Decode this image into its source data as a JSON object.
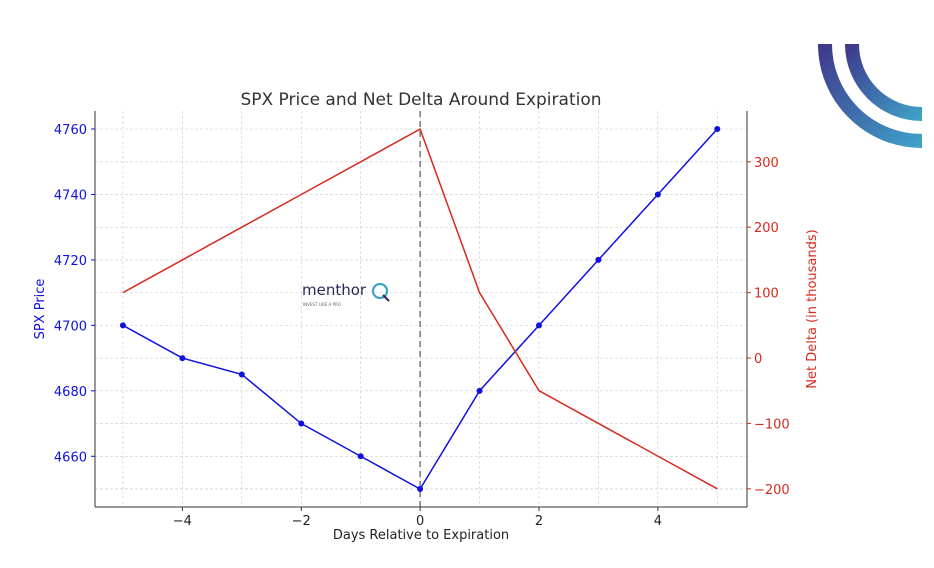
{
  "chart_data": {
    "type": "line",
    "title": "SPX Price and Net Delta Around Expiration",
    "xlabel": "Days Relative to Expiration",
    "ylabel_left": "SPX Price",
    "ylabel_right": "Net Delta (in thousands)",
    "x": [
      -5,
      -4,
      -3,
      -2,
      -1,
      0,
      1,
      2,
      3,
      4,
      5
    ],
    "xlim": [
      -5.47,
      5.5
    ],
    "ylim_left": [
      4644.5,
      4765.5
    ],
    "ylim_right": [
      -227.8,
      377.7
    ],
    "xticks": [
      "−4",
      "−2",
      "0",
      "2",
      "4"
    ],
    "xtick_values": [
      -4,
      -2,
      0,
      2,
      4
    ],
    "yticks_left": [
      "4660",
      "4680",
      "4700",
      "4720",
      "4740",
      "4760"
    ],
    "ytick_values_left": [
      4660,
      4680,
      4700,
      4720,
      4740,
      4760
    ],
    "yticks_right": [
      "−200",
      "−100",
      "0",
      "100",
      "200",
      "300"
    ],
    "ytick_values_right": [
      -200,
      -100,
      0,
      100,
      200,
      300
    ],
    "grid": true,
    "vline_x": 0,
    "series": [
      {
        "axis": "left",
        "color": "#1010e0",
        "markers": true,
        "values": [
          4700,
          4690,
          4685,
          4670,
          4660,
          4650,
          4680,
          4700,
          4720,
          4740,
          4760
        ]
      },
      {
        "axis": "right",
        "color": "#d62a1e",
        "markers": false,
        "values": [
          100,
          150,
          200,
          250,
          300,
          350,
          100,
          -50,
          -100,
          -150,
          -200
        ]
      }
    ]
  },
  "watermark": {
    "brand": "menthor",
    "tagline": "INVEST LIKE A PRO"
  },
  "colors": {
    "left_axis": "#1010e0",
    "right_axis": "#d62a1e",
    "logo_start": "#3f3a8c",
    "logo_end": "#3fa0c8"
  }
}
